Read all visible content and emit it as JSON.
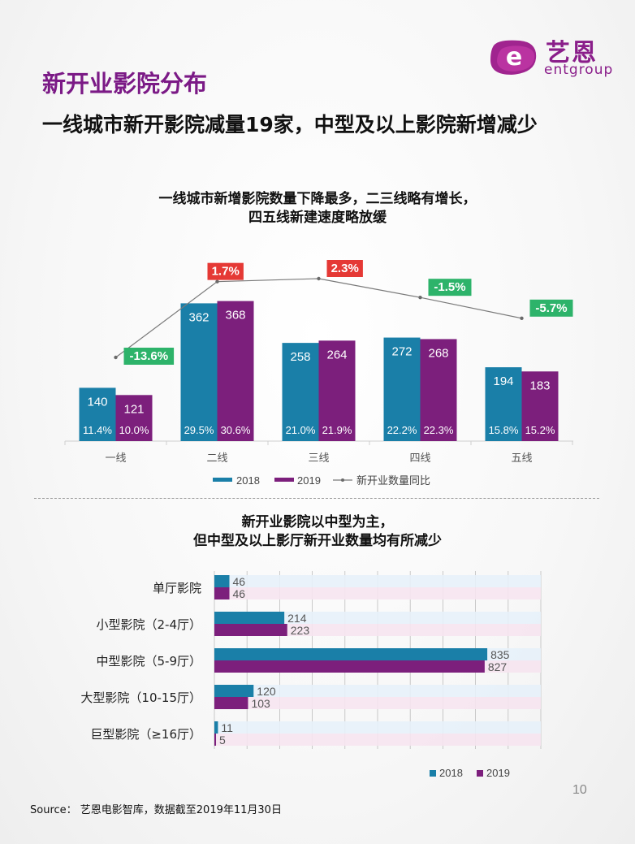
{
  "header": {
    "section_title": "新开业影院分布",
    "subtitle": "一线城市新开影院减量19家，中型及以上影院新增减少",
    "logo_cn": "艺恩",
    "logo_en": "entgroup"
  },
  "colors": {
    "series_2018": "#1a7fa8",
    "series_2019": "#7c1f7c",
    "negative_badge": "#2db36a",
    "positive_badge": "#e53935",
    "title_purple": "#7b1a86"
  },
  "chart_data": [
    {
      "type": "bar",
      "title_line1": "一线城市新增影院数量下降最多，二三线略有增长，",
      "title_line2": "四五线新建速度略放缓",
      "categories": [
        "一线",
        "二线",
        "三线",
        "四线",
        "五线"
      ],
      "series": [
        {
          "name": "2018",
          "values": [
            140,
            362,
            258,
            272,
            194
          ],
          "shares": [
            "11.4%",
            "29.5%",
            "21.0%",
            "22.2%",
            "15.8%"
          ]
        },
        {
          "name": "2019",
          "values": [
            121,
            368,
            264,
            268,
            183
          ],
          "shares": [
            "10.0%",
            "30.6%",
            "21.9%",
            "22.3%",
            "15.2%"
          ]
        }
      ],
      "line_series": {
        "name": "新开业数量同比",
        "values": [
          -13.6,
          1.7,
          2.3,
          -1.5,
          -5.7
        ],
        "labels": [
          "-13.6%",
          "1.7%",
          "2.3%",
          "-1.5%",
          "-5.7%"
        ]
      },
      "ylim": [
        0,
        400
      ],
      "legend": "bottom-center"
    },
    {
      "type": "bar",
      "orientation": "horizontal",
      "title_line1": "新开业影院以中型为主，",
      "title_line2": "但中型及以上影厅新开业数量均有所减少",
      "categories": [
        "单厅影院",
        "小型影院（2-4厅）",
        "中型影院（5-9厅）",
        "大型影院（10-15厅）",
        "巨型影院（≥16厅）"
      ],
      "series": [
        {
          "name": "2018",
          "values": [
            46,
            214,
            835,
            120,
            11
          ]
        },
        {
          "name": "2019",
          "values": [
            46,
            223,
            827,
            103,
            5
          ]
        }
      ],
      "xlim": [
        0,
        1000
      ],
      "legend": "bottom-right"
    }
  ],
  "footer": {
    "page_number": "10",
    "source": "Source：  艺恩电影智库，数据截至2019年11月30日"
  }
}
